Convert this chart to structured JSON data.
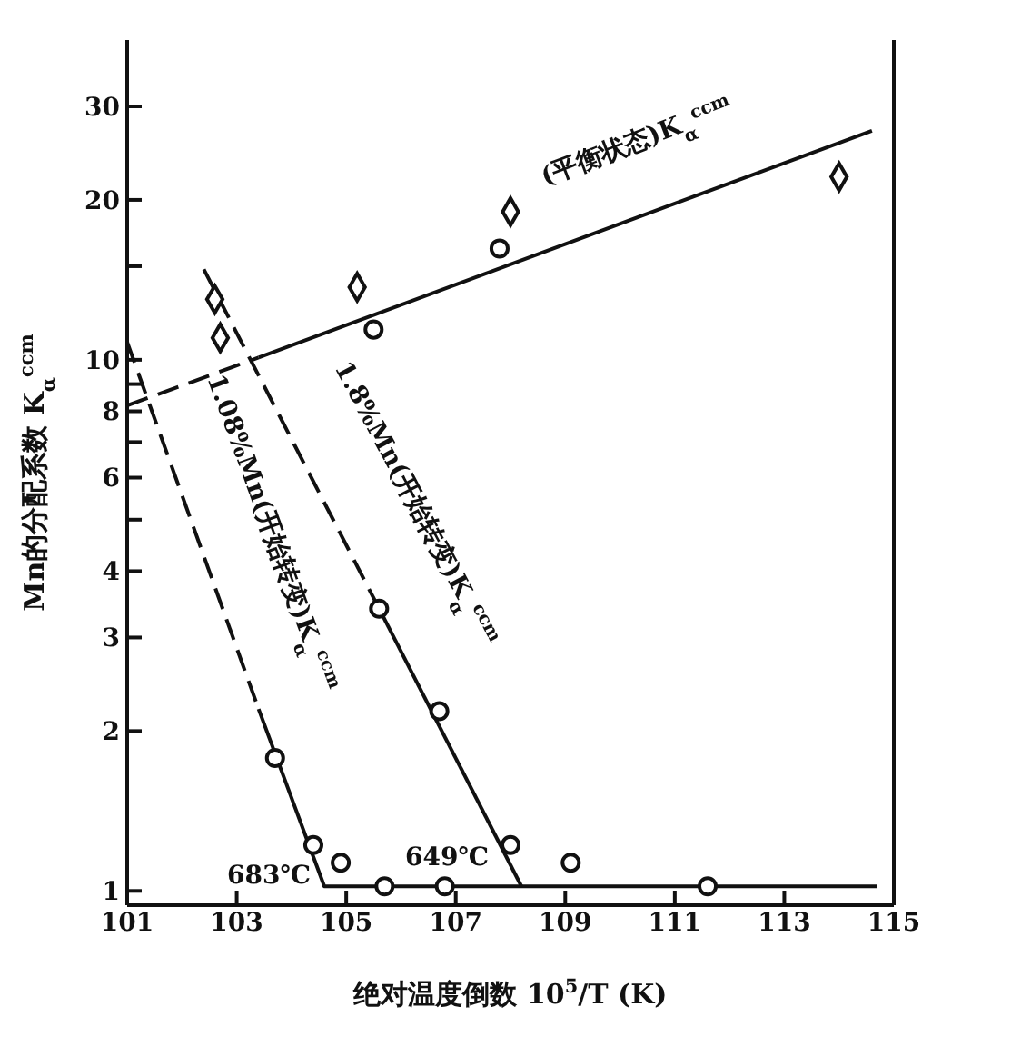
{
  "chart_data": {
    "type": "line",
    "xlabel": "绝对温度倒数 10$^{5}$/T (K)",
    "ylabel": "Mn的分配系数  K$_{α}$$^{ccm}$",
    "log": "y",
    "xlim": [
      101,
      115
    ],
    "xticks": [
      101,
      103,
      105,
      107,
      109,
      111,
      113,
      115
    ],
    "ylim": [
      0.94,
      40
    ],
    "yticks": [
      1,
      2,
      3,
      4,
      {
        "value": 5,
        "label": null
      },
      6,
      {
        "value": 7,
        "label": null
      },
      8,
      {
        "value": 9,
        "label": null
      },
      10,
      {
        "value": 15,
        "label": null
      },
      20,
      30
    ],
    "series": [
      {
        "color": "#111111",
        "line_style": "dashed",
        "marker": "none",
        "x": [
          101,
          103.4
        ],
        "values": [
          8.2,
          10.1
        ]
      },
      {
        "color": "#111111",
        "line_style": "solid",
        "marker": "none",
        "x": [
          103.4,
          114.6
        ],
        "values": [
          10.1,
          27
        ]
      },
      {
        "color": "#111111",
        "line_style": "dashed",
        "marker": "none",
        "x": [
          101.0,
          103.4
        ],
        "values": [
          10.8,
          2.2
        ]
      },
      {
        "color": "#111111",
        "line_style": "solid",
        "marker": "none",
        "x": [
          103.4,
          104.6,
          114.7
        ],
        "values": [
          2.2,
          1.02,
          1.02
        ]
      },
      {
        "color": "#111111",
        "line_style": "dashed",
        "marker": "none",
        "x": [
          102.4,
          105.6
        ],
        "values": [
          14.8,
          3.4
        ]
      },
      {
        "color": "#111111",
        "line_style": "solid",
        "marker": "none",
        "x": [
          105.6,
          108.2
        ],
        "values": [
          3.4,
          1.02
        ]
      },
      {
        "type": "scatter",
        "color": "#111111",
        "marker": "diamond",
        "x": [
          102.6,
          102.7,
          105.2,
          108.0,
          114.0
        ],
        "values": [
          13,
          11,
          13.7,
          19,
          22.1
        ]
      },
      {
        "type": "scatter",
        "color": "#111111",
        "marker": "circle",
        "x": [
          103.7,
          104.4,
          104.9,
          105.5,
          105.6,
          105.7,
          106.7,
          106.8,
          107.8,
          108.0,
          109.1,
          111.6
        ],
        "values": [
          1.78,
          1.22,
          1.13,
          11.4,
          3.4,
          1.02,
          2.18,
          1.02,
          16.2,
          1.22,
          1.13,
          1.02
        ]
      }
    ],
    "annotations": [
      "(平衡状态)K$_{α}$$^{ccm}$",
      "1.08%Mn(开始转变)K$_{α}$$^{ccm}$",
      "1.8%Mn(开始转变)K$_{α}$$^{ccm}$",
      "683℃",
      "649℃"
    ]
  }
}
